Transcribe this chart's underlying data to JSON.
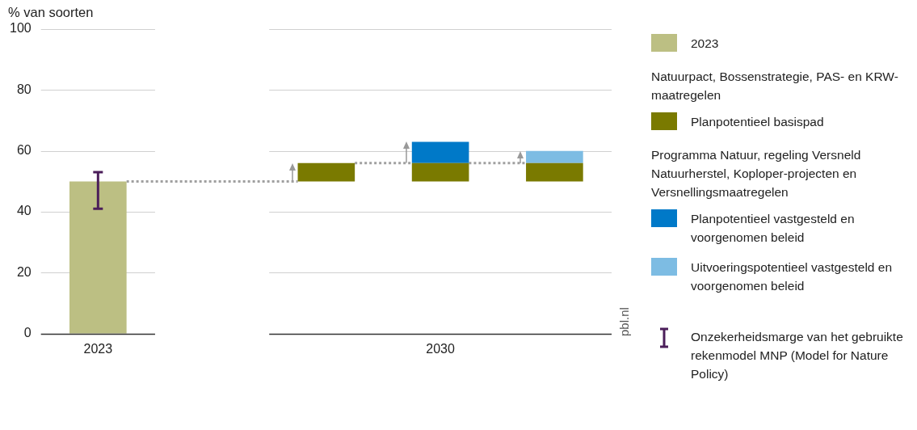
{
  "chart_data": {
    "type": "bar",
    "ylabel": "% van soorten",
    "categories": [
      "2023",
      null,
      null,
      "2030",
      null
    ],
    "series": [
      {
        "name": "2023",
        "color": "#bcbf83",
        "values": [
          50,
          null,
          null,
          null,
          null
        ],
        "errors": [
          [
            41,
            53
          ],
          null,
          null,
          null,
          null
        ]
      },
      {
        "name": "Planpotentieel basispad",
        "color": "#7a7a00",
        "base": [
          null,
          null,
          50,
          50,
          50
        ],
        "values": [
          null,
          null,
          6,
          6,
          6
        ]
      },
      {
        "name": "Planpotentieel vastgesteld en voorgenomen beleid",
        "color": "#0079c8",
        "base": [
          null,
          null,
          null,
          56,
          null
        ],
        "values": [
          null,
          null,
          null,
          7,
          null
        ]
      },
      {
        "name": "Uitvoeringspotentieel vastgesteld en voorgenomen beleid",
        "color": "#7dbce3",
        "base": [
          null,
          null,
          null,
          null,
          56
        ],
        "values": [
          null,
          null,
          null,
          null,
          4
        ]
      }
    ],
    "ylim": [
      0,
      100
    ],
    "yticks": [
      0,
      20,
      40,
      60,
      80,
      100
    ],
    "grid": "y",
    "legend": "right",
    "ref_lines": [
      {
        "axis": "y",
        "value": 50,
        "color": "#a0a0a0",
        "line_style": "dotted"
      },
      {
        "axis": "y",
        "value": 56,
        "color": "#a0a0a0",
        "line_style": "dotted"
      }
    ],
    "annotations": [
      "Natuurpact, Bossenstrategie, PAS- en KRW-maatregelen",
      "Programma Natuur, regeling Versneld Natuurherstel, Koploper-projecten en Versnellingsmaatregelen",
      "Onzekerheidsmarge van het gebruikte rekenmodel MNP (Model for Nature Policy)",
      "pbl.nl"
    ]
  }
}
